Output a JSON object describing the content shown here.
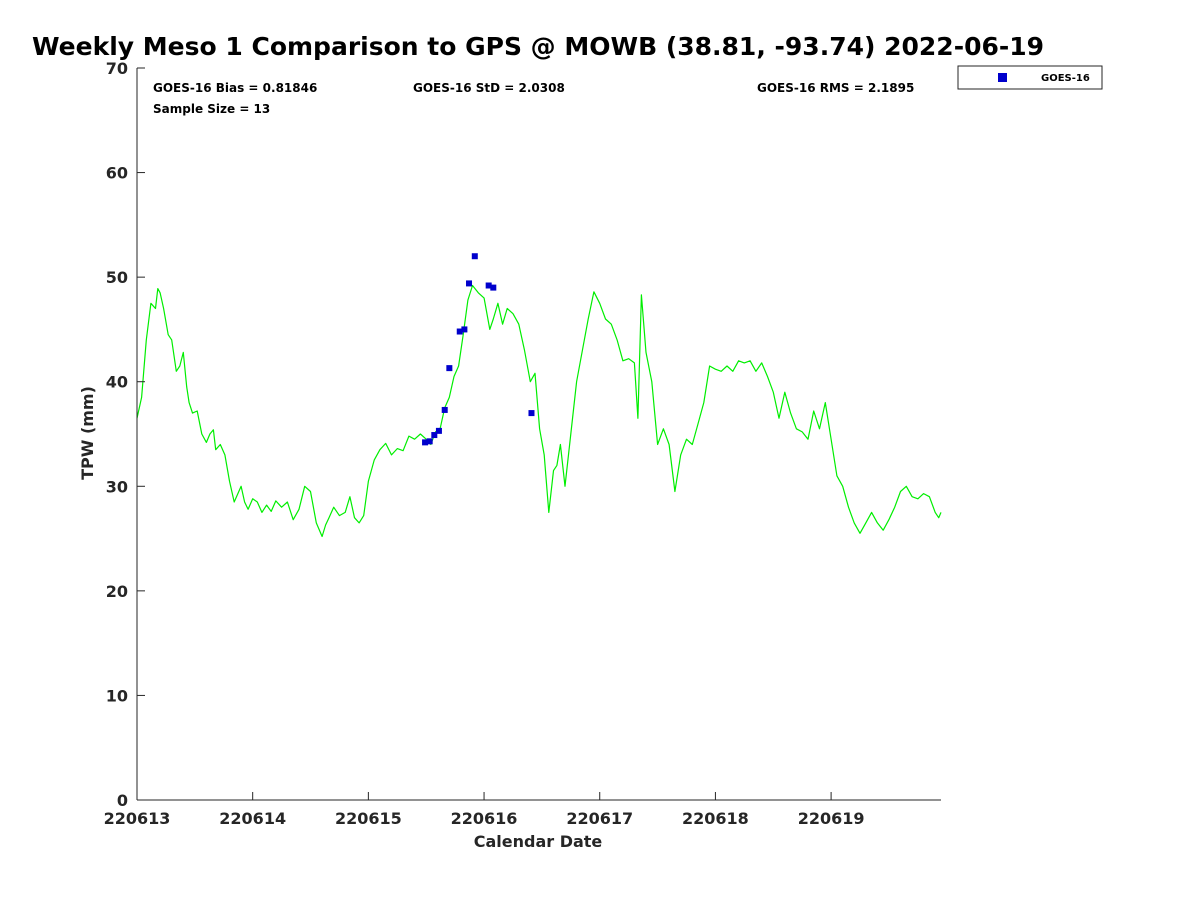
{
  "chart_data": {
    "type": "line",
    "title": "Weekly Meso 1 Comparison to GPS @ MOWB (38.81, -93.74) 2022-06-19",
    "xlabel": "Calendar Date",
    "ylabel": "TPW (mm)",
    "xlim": [
      220613,
      220619.95
    ],
    "ylim": [
      0,
      70
    ],
    "x_tick_values": [
      220613,
      220614,
      220615,
      220616,
      220617,
      220618,
      220619
    ],
    "x_tick_labels": [
      "220613",
      "220614",
      "220615",
      "220616",
      "220617",
      "220618",
      "220619"
    ],
    "y_ticks": [
      0,
      10,
      20,
      30,
      40,
      50,
      60,
      70
    ],
    "grid": false,
    "legend": {
      "position": "top-right",
      "entries": [
        "GOES-16"
      ]
    },
    "stats": {
      "bias": "GOES-16 Bias = 0.81846",
      "std": "GOES-16 StD = 2.0308",
      "rms": "GOES-16 RMS = 2.1895",
      "sample": "Sample Size = 13"
    },
    "colors": {
      "gps_line": "#00ee00",
      "goes_marker": "#0000cc",
      "axis": "#262626"
    },
    "series": [
      {
        "type": "line",
        "x": [
          220613.0,
          220613.04,
          220613.08,
          220613.12,
          220613.16,
          220613.18,
          220613.2,
          220613.23,
          220613.27,
          220613.3,
          220613.34,
          220613.37,
          220613.4,
          220613.43,
          220613.45,
          220613.48,
          220613.52,
          220613.56,
          220613.6,
          220613.63,
          220613.66,
          220613.68,
          220613.72,
          220613.76,
          220613.8,
          220613.84,
          220613.88,
          220613.9,
          220613.93,
          220613.96,
          220614.0,
          220614.04,
          220614.08,
          220614.12,
          220614.16,
          220614.2,
          220614.25,
          220614.3,
          220614.35,
          220614.4,
          220614.45,
          220614.5,
          220614.55,
          220614.6,
          220614.63,
          220614.66,
          220614.7,
          220614.75,
          220614.8,
          220614.84,
          220614.88,
          220614.92,
          220614.96,
          220615.0,
          220615.05,
          220615.1,
          220615.15,
          220615.2,
          220615.25,
          220615.3,
          220615.35,
          220615.4,
          220615.45,
          220615.5,
          220615.54,
          220615.58,
          220615.62,
          220615.66,
          220615.7,
          220615.74,
          220615.78,
          220615.82,
          220615.86,
          220615.9,
          220615.95,
          220616.0,
          220616.05,
          220616.08,
          220616.12,
          220616.16,
          220616.2,
          220616.25,
          220616.3,
          220616.35,
          220616.4,
          220616.44,
          220616.48,
          220616.52,
          220616.56,
          220616.6,
          220616.63,
          220616.66,
          220616.7,
          220616.75,
          220616.8,
          220616.85,
          220616.9,
          220616.95,
          220617.0,
          220617.05,
          220617.1,
          220617.15,
          220617.2,
          220617.25,
          220617.3,
          220617.33,
          220617.36,
          220617.4,
          220617.45,
          220617.5,
          220617.55,
          220617.6,
          220617.65,
          220617.7,
          220617.75,
          220617.8,
          220617.85,
          220617.9,
          220617.95,
          220618.0,
          220618.05,
          220618.1,
          220618.15,
          220618.2,
          220618.25,
          220618.3,
          220618.35,
          220618.4,
          220618.45,
          220618.5,
          220618.55,
          220618.6,
          220618.65,
          220618.7,
          220618.75,
          220618.8,
          220618.85,
          220618.9,
          220618.95,
          220619.0,
          220619.05,
          220619.1,
          220619.15,
          220619.2,
          220619.25,
          220619.3,
          220619.35,
          220619.4,
          220619.45,
          220619.5,
          220619.55,
          220619.6,
          220619.65,
          220619.7,
          220619.75,
          220619.8,
          220619.85,
          220619.9,
          220619.93,
          220619.95
        ],
        "y": [
          36.5,
          38.5,
          44.0,
          47.5,
          47.0,
          48.9,
          48.5,
          47.0,
          44.5,
          44.0,
          41.0,
          41.5,
          42.8,
          39.5,
          38.0,
          37.0,
          37.2,
          35.0,
          34.2,
          35.0,
          35.4,
          33.5,
          34.0,
          33.0,
          30.5,
          28.5,
          29.5,
          30.0,
          28.5,
          27.8,
          28.8,
          28.5,
          27.5,
          28.2,
          27.6,
          28.6,
          28.0,
          28.5,
          26.8,
          27.8,
          30.0,
          29.5,
          26.5,
          25.2,
          26.3,
          27.0,
          28.0,
          27.2,
          27.5,
          29.0,
          27.0,
          26.5,
          27.2,
          30.5,
          32.5,
          33.5,
          34.1,
          33.0,
          33.6,
          33.4,
          34.8,
          34.5,
          35.0,
          34.5,
          34.0,
          35.2,
          35.5,
          37.5,
          38.5,
          40.5,
          41.5,
          44.5,
          47.8,
          49.2,
          48.5,
          48.0,
          45.0,
          46.0,
          47.5,
          45.5,
          47.0,
          46.5,
          45.5,
          43.0,
          40.0,
          40.8,
          35.5,
          33.0,
          27.5,
          31.5,
          32.0,
          34.0,
          30.0,
          35.0,
          40.0,
          43.0,
          46.0,
          48.6,
          47.5,
          46.0,
          45.5,
          44.0,
          42.0,
          42.2,
          41.8,
          36.5,
          48.3,
          42.8,
          40.0,
          34.0,
          35.5,
          34.0,
          29.5,
          33.0,
          34.5,
          34.0,
          36.0,
          38.0,
          41.5,
          41.2,
          41.0,
          41.5,
          41.0,
          42.0,
          41.8,
          42.0,
          41.0,
          41.8,
          40.5,
          39.0,
          36.5,
          39.0,
          37.0,
          35.5,
          35.2,
          34.5,
          37.2,
          35.5,
          38.0,
          34.5,
          31.0,
          30.0,
          28.0,
          26.5,
          25.5,
          26.5,
          27.5,
          26.5,
          25.8,
          26.8,
          28.0,
          29.5,
          30.0,
          29.0,
          28.8,
          29.3,
          29.0,
          27.5,
          27.0,
          27.5
        ]
      },
      {
        "name": "GOES-16",
        "type": "scatter",
        "x": [
          220615.49,
          220615.53,
          220615.57,
          220615.61,
          220615.66,
          220615.7,
          220615.79,
          220615.83,
          220615.87,
          220615.92,
          220616.04,
          220616.08,
          220616.41
        ],
        "y": [
          34.2,
          34.3,
          34.9,
          35.3,
          37.3,
          41.3,
          44.8,
          45.0,
          49.4,
          52.0,
          49.2,
          49.0,
          37.0
        ]
      }
    ]
  }
}
